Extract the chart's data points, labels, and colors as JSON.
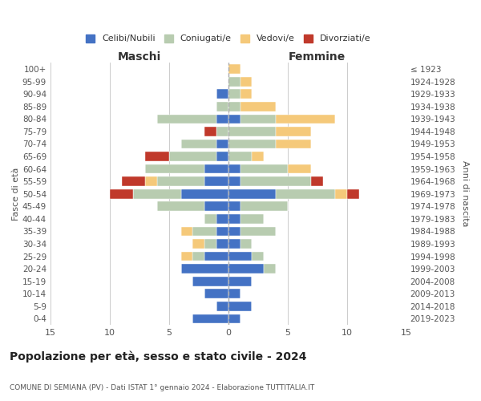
{
  "age_groups": [
    "0-4",
    "5-9",
    "10-14",
    "15-19",
    "20-24",
    "25-29",
    "30-34",
    "35-39",
    "40-44",
    "45-49",
    "50-54",
    "55-59",
    "60-64",
    "65-69",
    "70-74",
    "75-79",
    "80-84",
    "85-89",
    "90-94",
    "95-99",
    "100+"
  ],
  "birth_years": [
    "2019-2023",
    "2014-2018",
    "2009-2013",
    "2004-2008",
    "1999-2003",
    "1994-1998",
    "1989-1993",
    "1984-1988",
    "1979-1983",
    "1974-1978",
    "1969-1973",
    "1964-1968",
    "1959-1963",
    "1954-1958",
    "1949-1953",
    "1944-1948",
    "1939-1943",
    "1934-1938",
    "1929-1933",
    "1924-1928",
    "≤ 1923"
  ],
  "males": {
    "celibi": [
      3,
      1,
      2,
      3,
      4,
      2,
      1,
      1,
      1,
      2,
      4,
      2,
      2,
      1,
      1,
      0,
      1,
      0,
      1,
      0,
      0
    ],
    "coniugati": [
      0,
      0,
      0,
      0,
      0,
      1,
      1,
      2,
      1,
      4,
      4,
      4,
      5,
      4,
      3,
      1,
      5,
      1,
      0,
      0,
      0
    ],
    "vedovi": [
      0,
      0,
      0,
      0,
      0,
      1,
      1,
      1,
      0,
      0,
      0,
      1,
      0,
      0,
      0,
      0,
      0,
      0,
      0,
      0,
      0
    ],
    "divorziati": [
      0,
      0,
      0,
      0,
      0,
      0,
      0,
      0,
      0,
      0,
      2,
      2,
      0,
      2,
      0,
      1,
      0,
      0,
      0,
      0,
      0
    ]
  },
  "females": {
    "nubili": [
      1,
      2,
      1,
      2,
      3,
      2,
      1,
      1,
      1,
      1,
      4,
      1,
      1,
      0,
      0,
      0,
      1,
      0,
      0,
      0,
      0
    ],
    "coniugate": [
      0,
      0,
      0,
      0,
      1,
      1,
      1,
      3,
      2,
      4,
      5,
      6,
      4,
      2,
      4,
      4,
      3,
      1,
      1,
      1,
      0
    ],
    "vedove": [
      0,
      0,
      0,
      0,
      0,
      0,
      0,
      0,
      0,
      0,
      1,
      0,
      2,
      1,
      3,
      3,
      5,
      3,
      1,
      1,
      1
    ],
    "divorziate": [
      0,
      0,
      0,
      0,
      0,
      0,
      0,
      0,
      0,
      0,
      1,
      1,
      0,
      0,
      0,
      0,
      0,
      0,
      0,
      0,
      0
    ]
  },
  "colors": {
    "celibi": "#4472C4",
    "coniugati": "#B8CCB0",
    "vedovi": "#F5C97A",
    "divorziati": "#C0392B"
  },
  "legend_labels": [
    "Celibi/Nubili",
    "Coniugati/e",
    "Vedovi/e",
    "Divorziati/e"
  ],
  "title": "Popolazione per età, sesso e stato civile - 2024",
  "subtitle": "COMUNE DI SEMIANA (PV) - Dati ISTAT 1° gennaio 2024 - Elaborazione TUTTITALIA.IT",
  "xlabel_left": "Maschi",
  "xlabel_right": "Femmine",
  "ylabel_left": "Fasce di età",
  "ylabel_right": "Anni di nascita",
  "xlim": 15,
  "bg_color": "#ffffff",
  "grid_color": "#cccccc"
}
